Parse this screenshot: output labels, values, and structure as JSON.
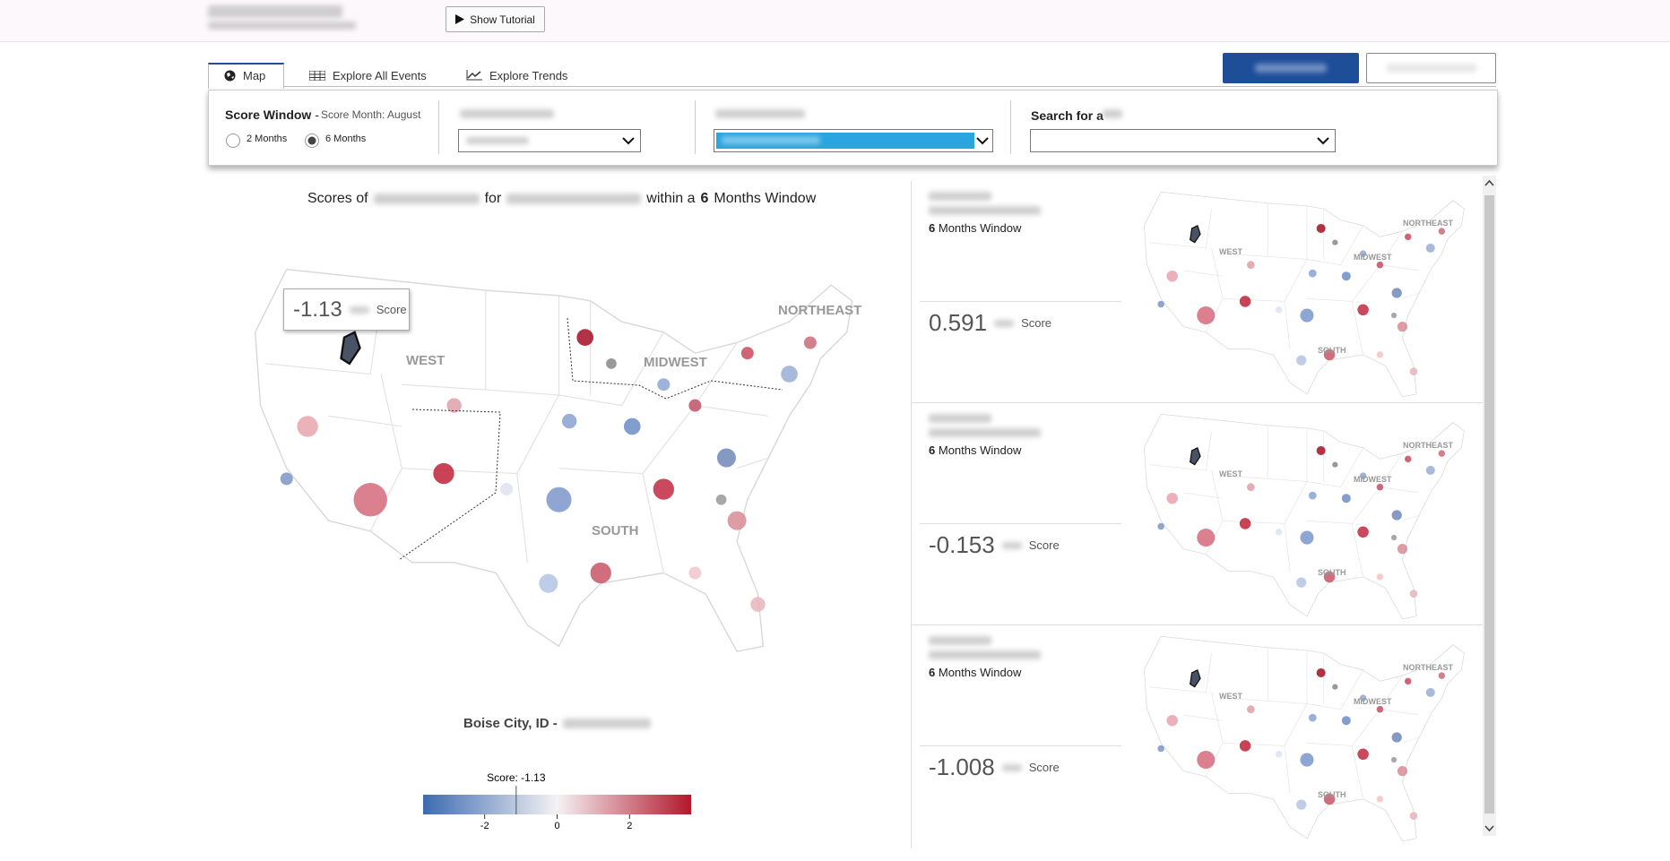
{
  "header": {
    "tutorial_button": "Show Tutorial"
  },
  "tabs": [
    "Map",
    "Explore All Events",
    "Explore Trends"
  ],
  "controls": {
    "score_window_label": "Score Window",
    "dash": "-",
    "score_month": "Score Month: August",
    "window_options": [
      "2 Months",
      "6 Months"
    ],
    "window_selected": "6 Months",
    "search_label": "Search for a"
  },
  "map": {
    "title_prefix": "Scores of",
    "title_for": "for",
    "title_within": "within a",
    "title_months": "6",
    "title_suffix": "Months Window",
    "regions": [
      "WEST",
      "MIDWEST",
      "NORTHEAST",
      "SOUTH"
    ],
    "tooltip": {
      "value": "-1.13",
      "unit": "Score"
    },
    "selected_area": "Boise City, ID -",
    "legend": {
      "label": "Score: -1.13",
      "value": -1.13,
      "range": [
        -3.7,
        3.7
      ],
      "ticks": [
        -2,
        0,
        2
      ]
    }
  },
  "panels": [
    {
      "months": "6",
      "window": "Months Window",
      "score": "0.591",
      "unit": "Score"
    },
    {
      "months": "6",
      "window": "Months Window",
      "score": "-0.153",
      "unit": "Score"
    },
    {
      "months": "6",
      "window": "Months Window",
      "score": "-1.008",
      "unit": "Score"
    }
  ]
}
